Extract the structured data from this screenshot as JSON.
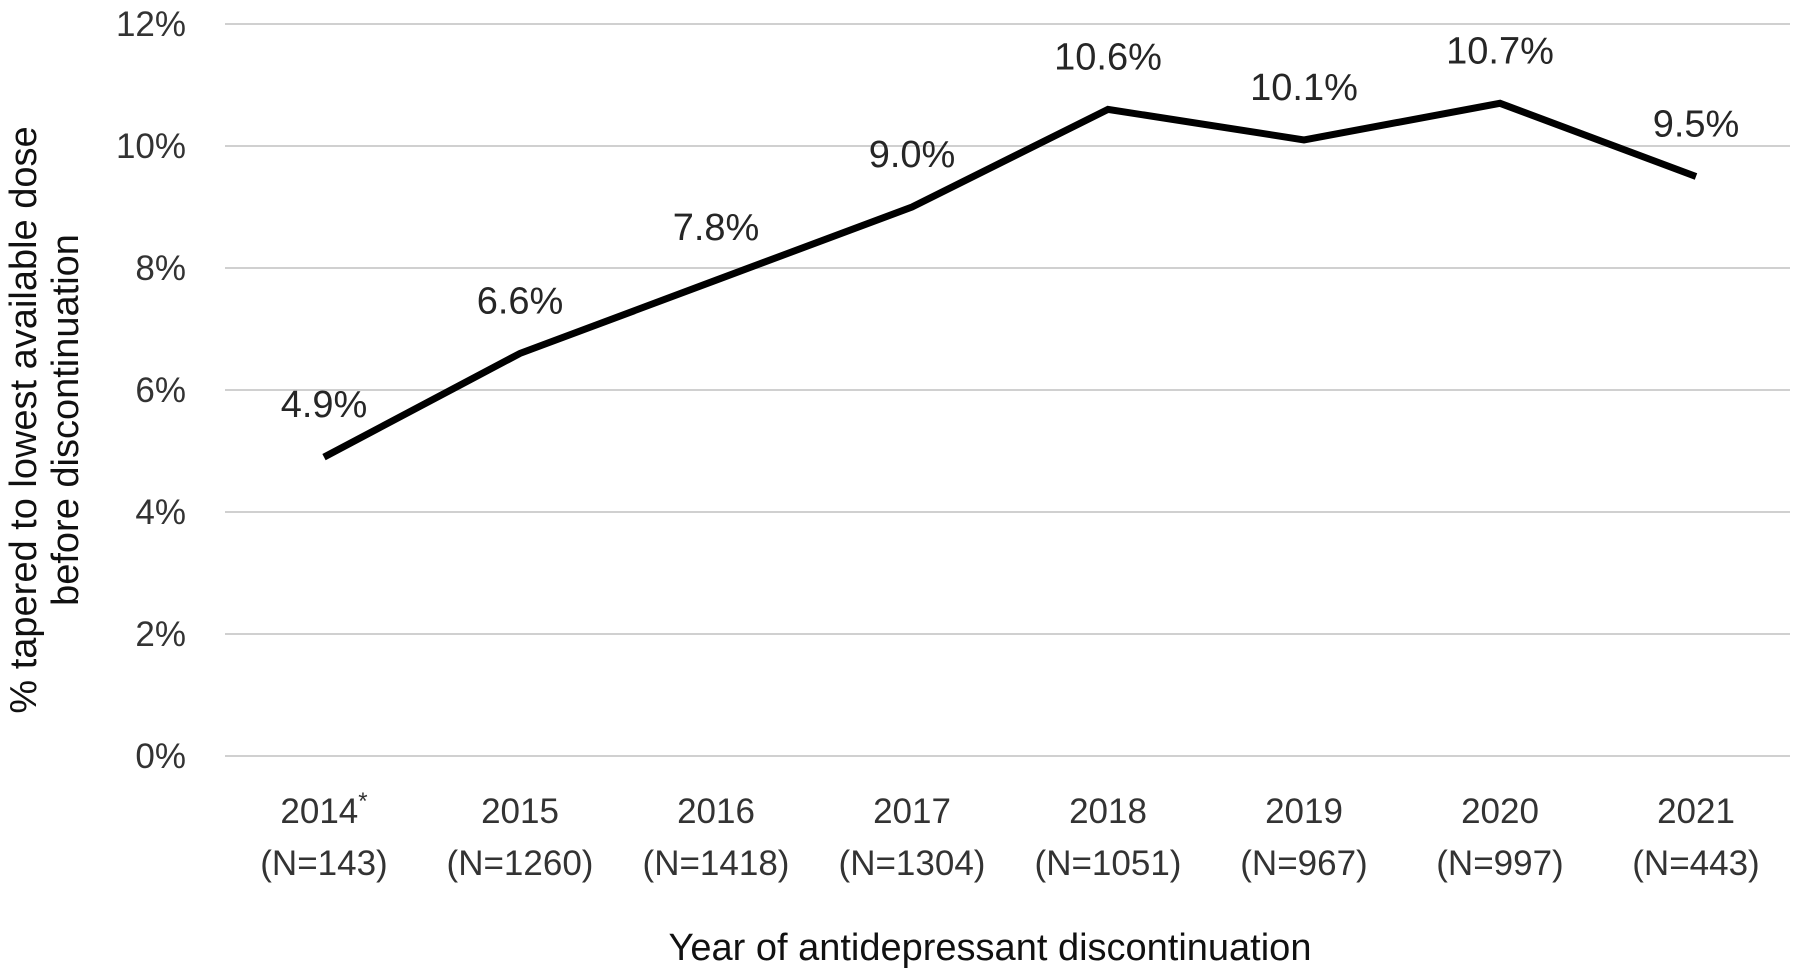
{
  "chart_data": {
    "type": "line",
    "title": "",
    "xlabel": "Year of antidepressant discontinuation",
    "ylabel_lines": [
      "% tapered to lowest available dose",
      "before discontinuation"
    ],
    "categories": [
      {
        "year": "2014",
        "marker": "*",
        "n": "(N=143)"
      },
      {
        "year": "2015",
        "marker": "",
        "n": "(N=1260)"
      },
      {
        "year": "2016",
        "marker": "",
        "n": "(N=1418)"
      },
      {
        "year": "2017",
        "marker": "",
        "n": "(N=1304)"
      },
      {
        "year": "2018",
        "marker": "",
        "n": "(N=1051)"
      },
      {
        "year": "2019",
        "marker": "",
        "n": "(N=967)"
      },
      {
        "year": "2020",
        "marker": "",
        "n": "(N=997)"
      },
      {
        "year": "2021",
        "marker": "",
        "n": "(N=443)"
      }
    ],
    "series": [
      {
        "values": [
          4.9,
          6.6,
          7.8,
          9.0,
          10.6,
          10.1,
          10.7,
          9.5
        ],
        "data_labels": [
          "4.9%",
          "6.6%",
          "7.8%",
          "9.0%",
          "10.6%",
          "10.1%",
          "10.7%",
          "9.5%"
        ],
        "color": "#000000"
      }
    ],
    "ylim": [
      0,
      12
    ],
    "yticks": [
      0,
      2,
      4,
      6,
      8,
      10,
      12
    ],
    "ytick_labels": [
      "0%",
      "2%",
      "4%",
      "6%",
      "8%",
      "10%",
      "12%"
    ],
    "grid": true,
    "legend": "none"
  }
}
